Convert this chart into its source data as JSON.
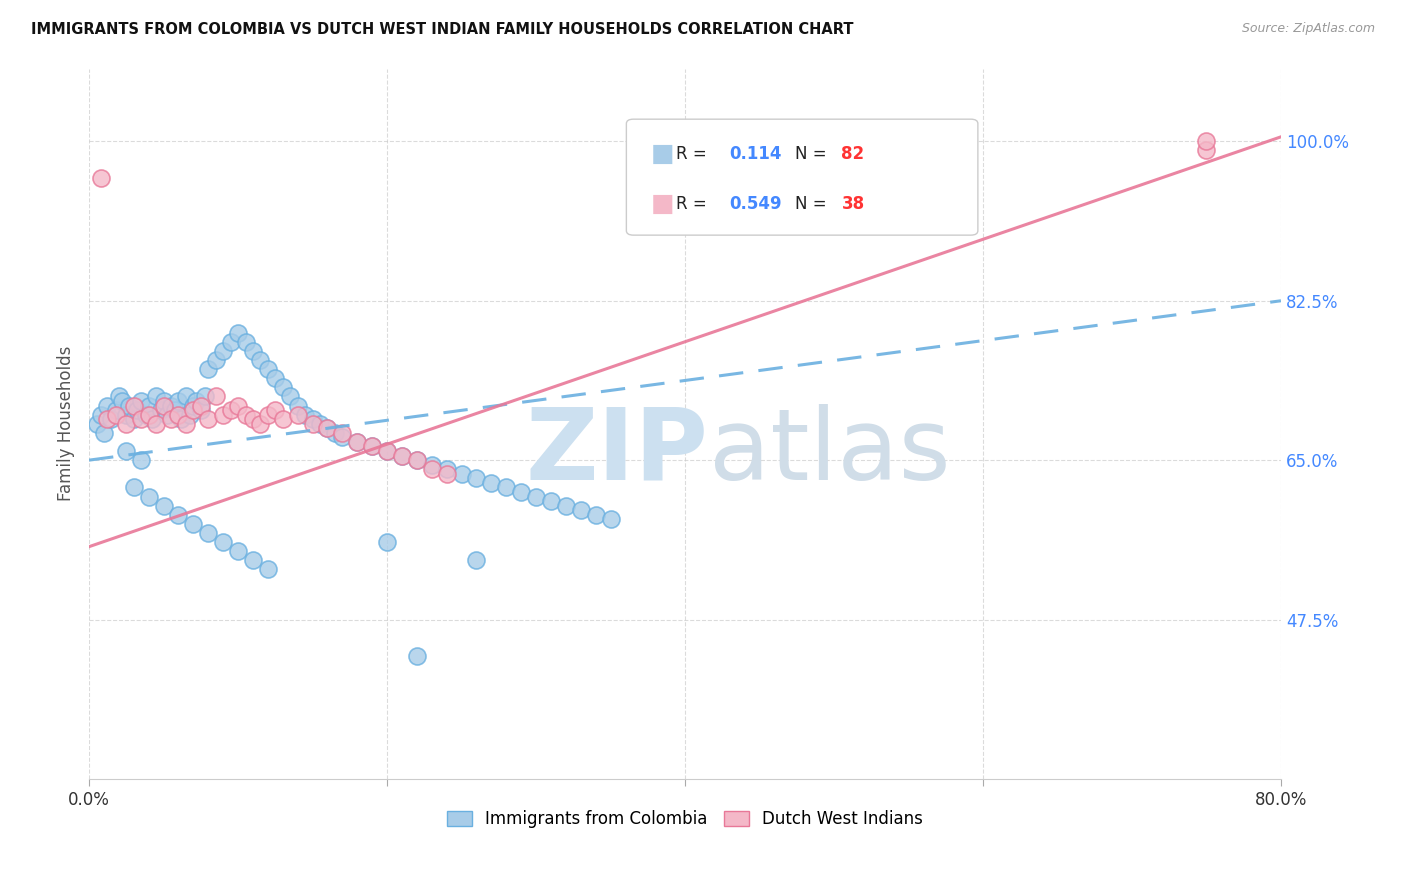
{
  "title": "IMMIGRANTS FROM COLOMBIA VS DUTCH WEST INDIAN FAMILY HOUSEHOLDS CORRELATION CHART",
  "source": "Source: ZipAtlas.com",
  "ylabel": "Family Households",
  "ytick_labels": [
    "100.0%",
    "82.5%",
    "65.0%",
    "47.5%"
  ],
  "ytick_values": [
    1.0,
    0.825,
    0.65,
    0.475
  ],
  "xlim": [
    0.0,
    0.8
  ],
  "ylim": [
    0.3,
    1.08
  ],
  "color_blue": "#a8cce8",
  "color_pink": "#f4b8c8",
  "line_blue_color": "#6ab0e0",
  "line_pink_color": "#e87898",
  "grid_color": "#cccccc",
  "blue_r": "0.114",
  "blue_n": "82",
  "pink_r": "0.549",
  "pink_n": "38",
  "r_color": "#4488ff",
  "n_color": "#ff3333",
  "watermark_zip_color": "#cce0f0",
  "watermark_atlas_color": "#d0dde8",
  "colombia_x": [
    0.005,
    0.008,
    0.01,
    0.012,
    0.015,
    0.018,
    0.02,
    0.022,
    0.025,
    0.027,
    0.03,
    0.032,
    0.035,
    0.038,
    0.04,
    0.042,
    0.045,
    0.048,
    0.05,
    0.052,
    0.055,
    0.058,
    0.06,
    0.062,
    0.065,
    0.068,
    0.07,
    0.072,
    0.075,
    0.078,
    0.08,
    0.085,
    0.09,
    0.095,
    0.1,
    0.105,
    0.11,
    0.115,
    0.12,
    0.125,
    0.13,
    0.135,
    0.14,
    0.145,
    0.15,
    0.155,
    0.16,
    0.165,
    0.17,
    0.18,
    0.19,
    0.2,
    0.21,
    0.22,
    0.23,
    0.24,
    0.25,
    0.26,
    0.27,
    0.28,
    0.29,
    0.3,
    0.31,
    0.32,
    0.33,
    0.34,
    0.35,
    0.03,
    0.04,
    0.05,
    0.06,
    0.07,
    0.08,
    0.09,
    0.1,
    0.11,
    0.12,
    0.025,
    0.035,
    0.2,
    0.26,
    0.22
  ],
  "colombia_y": [
    0.69,
    0.7,
    0.68,
    0.71,
    0.695,
    0.705,
    0.72,
    0.715,
    0.7,
    0.71,
    0.695,
    0.705,
    0.715,
    0.7,
    0.71,
    0.695,
    0.72,
    0.705,
    0.715,
    0.7,
    0.71,
    0.705,
    0.715,
    0.695,
    0.72,
    0.7,
    0.71,
    0.715,
    0.705,
    0.72,
    0.75,
    0.76,
    0.77,
    0.78,
    0.79,
    0.78,
    0.77,
    0.76,
    0.75,
    0.74,
    0.73,
    0.72,
    0.71,
    0.7,
    0.695,
    0.69,
    0.685,
    0.68,
    0.675,
    0.67,
    0.665,
    0.66,
    0.655,
    0.65,
    0.645,
    0.64,
    0.635,
    0.63,
    0.625,
    0.62,
    0.615,
    0.61,
    0.605,
    0.6,
    0.595,
    0.59,
    0.585,
    0.62,
    0.61,
    0.6,
    0.59,
    0.58,
    0.57,
    0.56,
    0.55,
    0.54,
    0.53,
    0.66,
    0.65,
    0.56,
    0.54,
    0.435
  ],
  "dutch_x": [
    0.008,
    0.012,
    0.018,
    0.025,
    0.03,
    0.035,
    0.04,
    0.045,
    0.05,
    0.055,
    0.06,
    0.065,
    0.07,
    0.075,
    0.08,
    0.085,
    0.09,
    0.095,
    0.1,
    0.105,
    0.11,
    0.115,
    0.12,
    0.125,
    0.13,
    0.14,
    0.15,
    0.16,
    0.17,
    0.18,
    0.19,
    0.2,
    0.21,
    0.22,
    0.23,
    0.24,
    0.75,
    0.75
  ],
  "dutch_y": [
    0.96,
    0.695,
    0.7,
    0.69,
    0.71,
    0.695,
    0.7,
    0.69,
    0.71,
    0.695,
    0.7,
    0.69,
    0.705,
    0.71,
    0.695,
    0.72,
    0.7,
    0.705,
    0.71,
    0.7,
    0.695,
    0.69,
    0.7,
    0.705,
    0.695,
    0.7,
    0.69,
    0.685,
    0.68,
    0.67,
    0.665,
    0.66,
    0.655,
    0.65,
    0.64,
    0.635,
    0.99,
    1.0
  ],
  "col_trend_x": [
    0.0,
    0.8
  ],
  "col_trend_y": [
    0.65,
    0.825
  ],
  "dutch_trend_x": [
    0.0,
    0.8
  ],
  "dutch_trend_y": [
    0.555,
    1.005
  ]
}
